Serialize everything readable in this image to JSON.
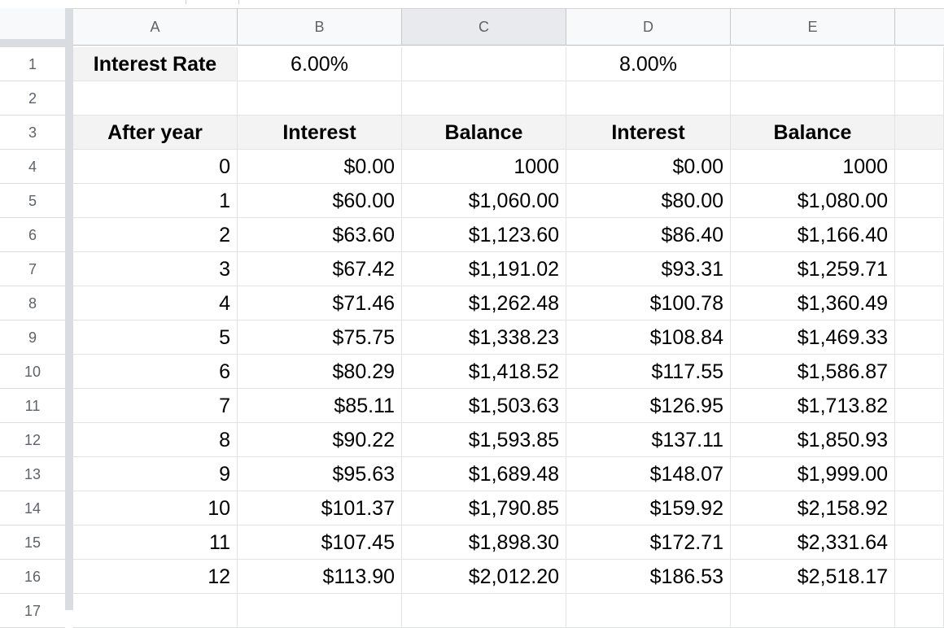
{
  "columns": [
    "A",
    "B",
    "C",
    "D",
    "E"
  ],
  "row_numbers": [
    "1",
    "2",
    "3",
    "4",
    "5",
    "6",
    "7",
    "8",
    "9",
    "10",
    "11",
    "12",
    "13",
    "14",
    "15",
    "16",
    "17"
  ],
  "row1": {
    "label": "Interest Rate",
    "rate_b": "6.00%",
    "rate_c": "",
    "rate_d": "8.00%",
    "rate_e": ""
  },
  "row2": {
    "a": "",
    "b": "",
    "c": "",
    "d": "",
    "e": ""
  },
  "header": {
    "after_year": "After year",
    "interest_b": "Interest",
    "balance_c": "Balance",
    "interest_d": "Interest",
    "balance_e": "Balance"
  },
  "rows": [
    {
      "year": "0",
      "int6": "$0.00",
      "bal6": "1000",
      "int8": "$0.00",
      "bal8": "1000"
    },
    {
      "year": "1",
      "int6": "$60.00",
      "bal6": "$1,060.00",
      "int8": "$80.00",
      "bal8": "$1,080.00"
    },
    {
      "year": "2",
      "int6": "$63.60",
      "bal6": "$1,123.60",
      "int8": "$86.40",
      "bal8": "$1,166.40"
    },
    {
      "year": "3",
      "int6": "$67.42",
      "bal6": "$1,191.02",
      "int8": "$93.31",
      "bal8": "$1,259.71"
    },
    {
      "year": "4",
      "int6": "$71.46",
      "bal6": "$1,262.48",
      "int8": "$100.78",
      "bal8": "$1,360.49"
    },
    {
      "year": "5",
      "int6": "$75.75",
      "bal6": "$1,338.23",
      "int8": "$108.84",
      "bal8": "$1,469.33"
    },
    {
      "year": "6",
      "int6": "$80.29",
      "bal6": "$1,418.52",
      "int8": "$117.55",
      "bal8": "$1,586.87"
    },
    {
      "year": "7",
      "int6": "$85.11",
      "bal6": "$1,503.63",
      "int8": "$126.95",
      "bal8": "$1,713.82"
    },
    {
      "year": "8",
      "int6": "$90.22",
      "bal6": "$1,593.85",
      "int8": "$137.11",
      "bal8": "$1,850.93"
    },
    {
      "year": "9",
      "int6": "$95.63",
      "bal6": "$1,689.48",
      "int8": "$148.07",
      "bal8": "$1,999.00"
    },
    {
      "year": "10",
      "int6": "$101.37",
      "bal6": "$1,790.85",
      "int8": "$159.92",
      "bal8": "$2,158.92"
    },
    {
      "year": "11",
      "int6": "$107.45",
      "bal6": "$1,898.30",
      "int8": "$172.71",
      "bal8": "$2,331.64"
    },
    {
      "year": "12",
      "int6": "$113.90",
      "bal6": "$2,012.20",
      "int8": "$186.53",
      "bal8": "$2,518.17"
    }
  ]
}
